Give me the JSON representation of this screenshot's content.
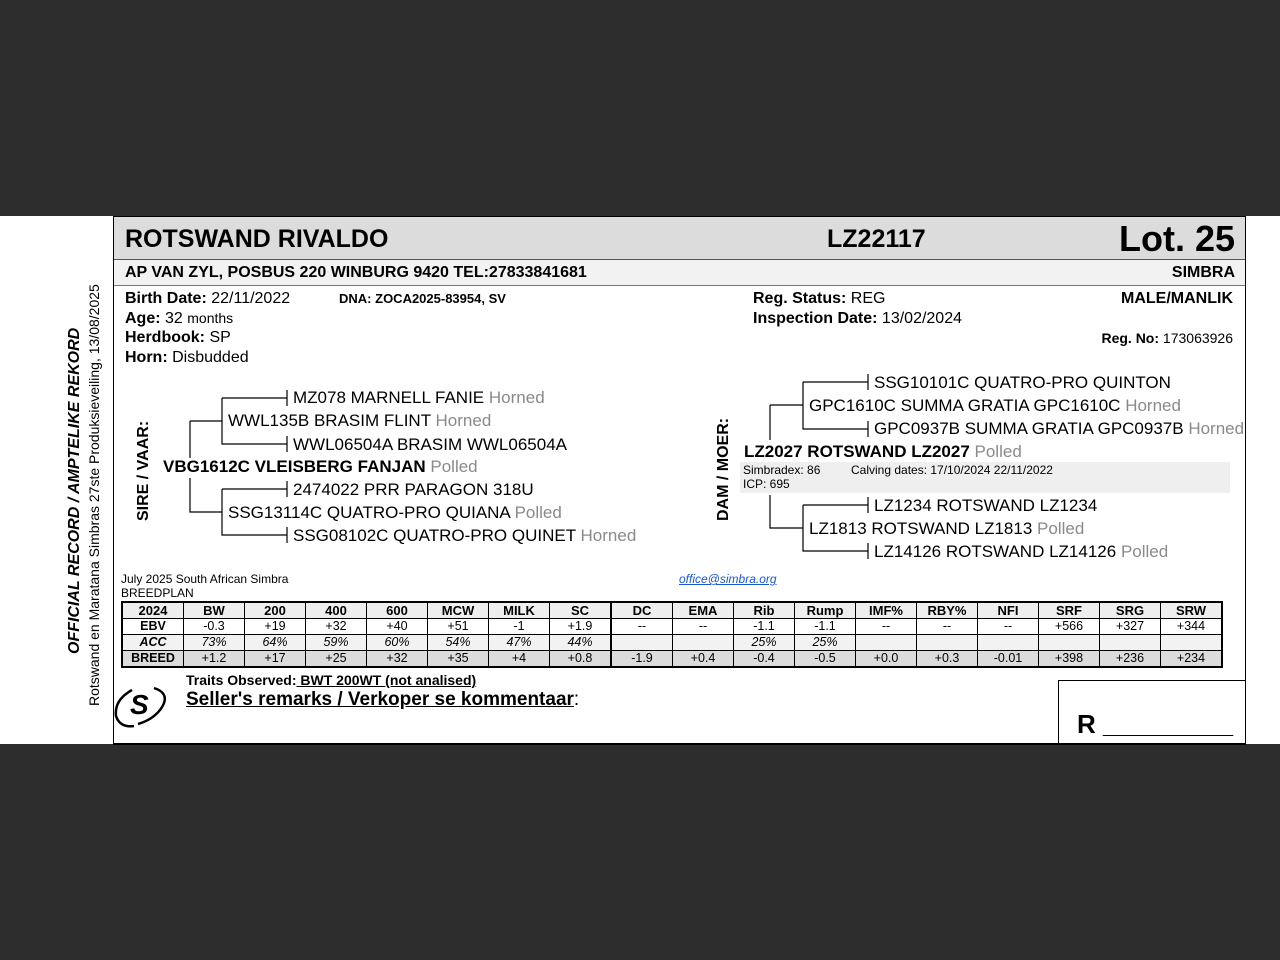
{
  "side": {
    "title": "OFFICIAL RECORD / AMPTELIKE REKORD",
    "subtitle": "Rotswand en Maratana Simbras 27ste Produksieveiling, 13/08/2025"
  },
  "header": {
    "name": "ROTSWAND RIVALDO",
    "id": "LZ22117",
    "lot": "Lot. 25"
  },
  "owner": {
    "line": "AP VAN ZYL, POSBUS 220 WINBURG 9420 TEL:27833841681",
    "breed": "SIMBRA"
  },
  "details": {
    "birth_label": "Birth Date:",
    "birth": "22/11/2022",
    "dna_label": "DNA:",
    "dna": "ZOCA2025-83954, SV",
    "age_label": "Age:",
    "age": "32",
    "age_unit": "months",
    "herdbook_label": "Herdbook:",
    "herdbook": "SP",
    "horn_label": "Horn:",
    "horn": "Disbudded",
    "reg_status_label": "Reg. Status:",
    "reg_status": "REG",
    "inspection_label": "Inspection Date:",
    "inspection": "13/02/2024",
    "sex": "MALE/MANLIK",
    "reg_no_label": "Reg. No:",
    "reg_no": "173063926"
  },
  "sire": {
    "label": "SIRE / VAAR:",
    "name": "VBG1612C VLEISBERG FANJAN",
    "horn": "Polled",
    "sire": {
      "name": "WWL135B BRASIM FLINT",
      "horn": "Horned",
      "sire": "MZ078 MARNELL FANIE",
      "sire_horn": "Horned",
      "dam": "WWL06504A BRASIM WWL06504A"
    },
    "dam": {
      "name": "SSG13114C QUATRO-PRO QUIANA",
      "horn": "Polled",
      "sire": "2474022 PRR PARAGON 318U",
      "dam": "SSG08102C QUATRO-PRO QUINET",
      "dam_horn": "Horned"
    }
  },
  "dam": {
    "label": "DAM / MOER:",
    "name": "LZ2027 ROTSWAND LZ2027",
    "horn": "Polled",
    "simbradex": "Simbradex: 86",
    "calving": "Calving dates: 17/10/2024  22/11/2022",
    "icp": "ICP: 695",
    "sire": {
      "name": "GPC1610C SUMMA GRATIA GPC1610C",
      "horn": "Horned",
      "sire": "SSG10101C QUATRO-PRO QUINTON",
      "dam": "GPC0937B SUMMA GRATIA GPC0937B",
      "dam_horn": "Horned"
    },
    "dam": {
      "name": "LZ1813 ROTSWAND LZ1813",
      "horn": "Polled",
      "sire": "LZ1234 ROTSWAND LZ1234",
      "dam": "LZ14126 ROTSWAND LZ14126",
      "dam_horn": "Polled"
    }
  },
  "breedplan": {
    "line1": "July 2025 South African Simbra",
    "line2": "BREEDPLAN",
    "email": "office@simbra.org",
    "headers": [
      "2024",
      "BW",
      "200",
      "400",
      "600",
      "MCW",
      "MILK",
      "SC",
      "DC",
      "EMA",
      "Rib",
      "Rump",
      "IMF%",
      "RBY%",
      "NFI",
      "SRF",
      "SRG",
      "SRW"
    ],
    "rows": [
      [
        "EBV",
        "-0.3",
        "+19",
        "+32",
        "+40",
        "+51",
        "-1",
        "+1.9",
        "--",
        "--",
        "-1.1",
        "-1.1",
        "--",
        "--",
        "--",
        "+566",
        "+327",
        "+344"
      ],
      [
        "ACC",
        "73%",
        "64%",
        "59%",
        "60%",
        "54%",
        "47%",
        "44%",
        "",
        "",
        "25%",
        "25%",
        "",
        "",
        "",
        "",
        "",
        ""
      ],
      [
        "BREED",
        "+1.2",
        "+17",
        "+25",
        "+32",
        "+35",
        "+4",
        "+0.8",
        "-1.9",
        "+0.4",
        "-0.4",
        "-0.5",
        "+0.0",
        "+0.3",
        "-0.01",
        "+398",
        "+236",
        "+234"
      ]
    ]
  },
  "footer": {
    "traits_label": "Traits Observed:",
    "traits": " BWT  200WT (not analised)",
    "remarks": "Seller's remarks / Verkoper se kommentaar",
    "remarks_colon": ":",
    "logo_letter": "S",
    "r_label": "R _________"
  }
}
